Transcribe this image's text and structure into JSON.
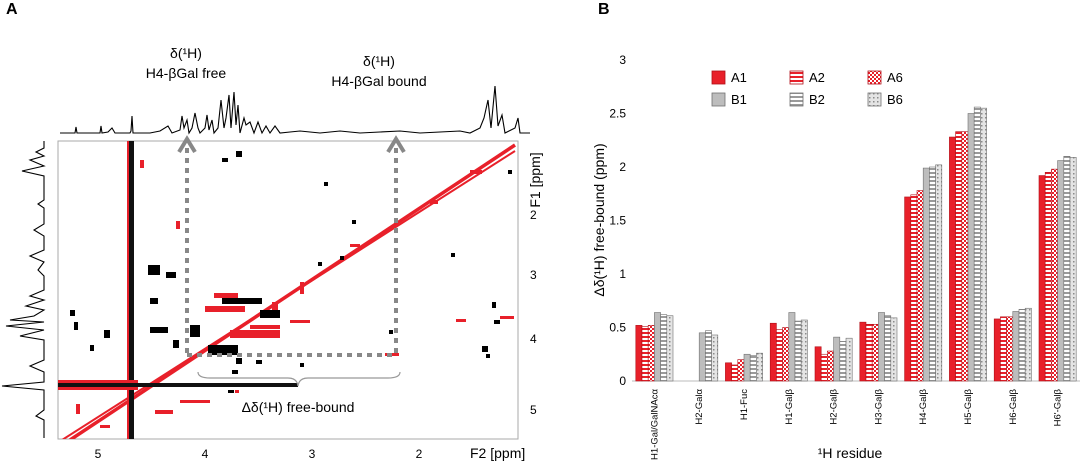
{
  "panel_a": {
    "letter": "A",
    "label_free_line1": "δ(¹H)",
    "label_free_line2": "H4-βGal free",
    "label_bound_line1": "δ(¹H)",
    "label_bound_line2": "H4-βGal bound",
    "label_delta": "Δδ(¹H) free-bound",
    "f1_label": "F1 [ppm]",
    "f2_label": "F2 [ppm]",
    "f2_ticks": [
      "5",
      "4",
      "3",
      "2"
    ],
    "f1_ticks": [
      "2",
      "3",
      "4",
      "5"
    ],
    "colors": {
      "red": "#e8202a",
      "black": "#000000",
      "arrow": "#888888"
    }
  },
  "panel_b": {
    "letter": "B"
  },
  "chart_data": {
    "type": "bar",
    "title": "",
    "xlabel": "¹H residue",
    "ylabel": "Δδ(¹H) free-bound (ppm)",
    "ylim": [
      0,
      3
    ],
    "yticks": [
      "0",
      "0.5",
      "1",
      "1.5",
      "2",
      "2.5",
      "3"
    ],
    "categories": [
      "H1-Gal/GalNAcα",
      "H2-Galα",
      "H1-Fuc",
      "H1-Galβ",
      "H2-Galβ",
      "H3-Galβ",
      "H4-Galβ",
      "H5-Galβ",
      "H6-Galβ",
      "H6'-Galβ"
    ],
    "series": [
      {
        "name": "A1",
        "color": "#e8202a",
        "pattern": "solid-red",
        "values": [
          0.52,
          null,
          0.17,
          0.54,
          0.32,
          0.55,
          1.72,
          2.28,
          0.58,
          1.92
        ]
      },
      {
        "name": "A2",
        "color": "#e8202a",
        "pattern": "hstripe-red",
        "values": [
          0.51,
          null,
          0.15,
          0.48,
          0.25,
          0.53,
          1.74,
          2.33,
          0.6,
          1.95
        ]
      },
      {
        "name": "A6",
        "color": "#e8202a",
        "pattern": "check-red",
        "values": [
          0.52,
          null,
          0.2,
          0.5,
          0.28,
          0.53,
          1.78,
          2.33,
          0.6,
          1.98
        ]
      },
      {
        "name": "B1",
        "color": "#bdbdbd",
        "pattern": "solid-gray",
        "values": [
          0.64,
          0.45,
          0.25,
          0.64,
          0.41,
          0.64,
          1.99,
          2.5,
          0.65,
          2.06
        ]
      },
      {
        "name": "B2",
        "color": "#9a9a9a",
        "pattern": "hstripe-gray",
        "values": [
          0.62,
          0.47,
          0.24,
          0.56,
          0.37,
          0.61,
          2.0,
          2.56,
          0.67,
          2.1
        ]
      },
      {
        "name": "B6",
        "color": "#cfcfcf",
        "pattern": "dots-gray",
        "values": [
          0.61,
          0.43,
          0.26,
          0.57,
          0.4,
          0.59,
          2.02,
          2.55,
          0.68,
          2.09
        ]
      }
    ]
  }
}
